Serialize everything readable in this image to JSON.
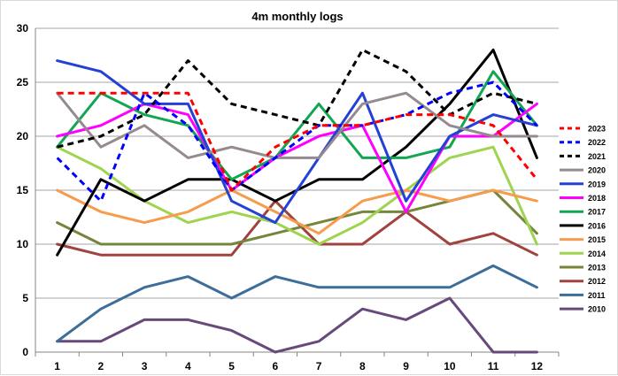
{
  "chart_data": {
    "type": "line",
    "title": "4m monthly logs",
    "xlabel": "",
    "ylabel": "",
    "categories": [
      1,
      2,
      3,
      4,
      5,
      6,
      7,
      8,
      9,
      10,
      11,
      12
    ],
    "ylim": [
      0,
      30
    ],
    "yticks": [
      0,
      5,
      10,
      15,
      20,
      25,
      30
    ],
    "grid": "horizontal",
    "legend_position": "right",
    "series": [
      {
        "name": "2023",
        "color": "#ff0000",
        "dash": true,
        "values": [
          24,
          24,
          24,
          24,
          15,
          19,
          21,
          21,
          22,
          22,
          21,
          16
        ]
      },
      {
        "name": "2022",
        "color": "#0000ff",
        "dash": true,
        "values": [
          18,
          14,
          24,
          21,
          15,
          18,
          21,
          21,
          22,
          24,
          25,
          21
        ]
      },
      {
        "name": "2021",
        "color": "#000000",
        "dash": true,
        "values": [
          19,
          20,
          22,
          27,
          23,
          22,
          21,
          28,
          26,
          22,
          24,
          23
        ]
      },
      {
        "name": "2020",
        "color": "#948a8f",
        "dash": false,
        "values": [
          24,
          19,
          21,
          18,
          19,
          18,
          18,
          23,
          24,
          21,
          20,
          20
        ]
      },
      {
        "name": "2019",
        "color": "#2441d6",
        "dash": false,
        "values": [
          27,
          26,
          23,
          23,
          14,
          12,
          18,
          24,
          14,
          20,
          22,
          21
        ]
      },
      {
        "name": "2018",
        "color": "#ff00ff",
        "dash": false,
        "values": [
          20,
          21,
          23,
          22,
          15,
          18,
          20,
          21,
          13,
          20,
          20,
          23
        ]
      },
      {
        "name": "2017",
        "color": "#13a652",
        "dash": false,
        "values": [
          19,
          24,
          22,
          21,
          16,
          18,
          23,
          18,
          18,
          19,
          26,
          21
        ]
      },
      {
        "name": "2016",
        "color": "#000000",
        "dash": false,
        "values": [
          9,
          16,
          14,
          16,
          16,
          14,
          16,
          16,
          19,
          23,
          28,
          18
        ]
      },
      {
        "name": "2015",
        "color": "#f79c4c",
        "dash": false,
        "values": [
          15,
          13,
          12,
          13,
          15,
          13,
          11,
          14,
          15,
          14,
          15,
          14
        ]
      },
      {
        "name": "2014",
        "color": "#9ed44f",
        "dash": false,
        "values": [
          19,
          17,
          14,
          12,
          13,
          12,
          10,
          12,
          15,
          18,
          19,
          10
        ]
      },
      {
        "name": "2013",
        "color": "#75853c",
        "dash": false,
        "values": [
          12,
          10,
          10,
          10,
          10,
          11,
          12,
          13,
          13,
          14,
          15,
          11
        ]
      },
      {
        "name": "2012",
        "color": "#a0433f",
        "dash": false,
        "values": [
          10,
          9,
          9,
          9,
          9,
          14,
          10,
          10,
          13,
          10,
          11,
          9
        ]
      },
      {
        "name": "2011",
        "color": "#3d6e99",
        "dash": false,
        "values": [
          1,
          4,
          6,
          7,
          5,
          7,
          6,
          6,
          6,
          6,
          8,
          6
        ]
      },
      {
        "name": "2010",
        "color": "#674a7b",
        "dash": false,
        "values": [
          1,
          1,
          3,
          3,
          2,
          0,
          1,
          4,
          3,
          5,
          0,
          0
        ]
      }
    ]
  }
}
